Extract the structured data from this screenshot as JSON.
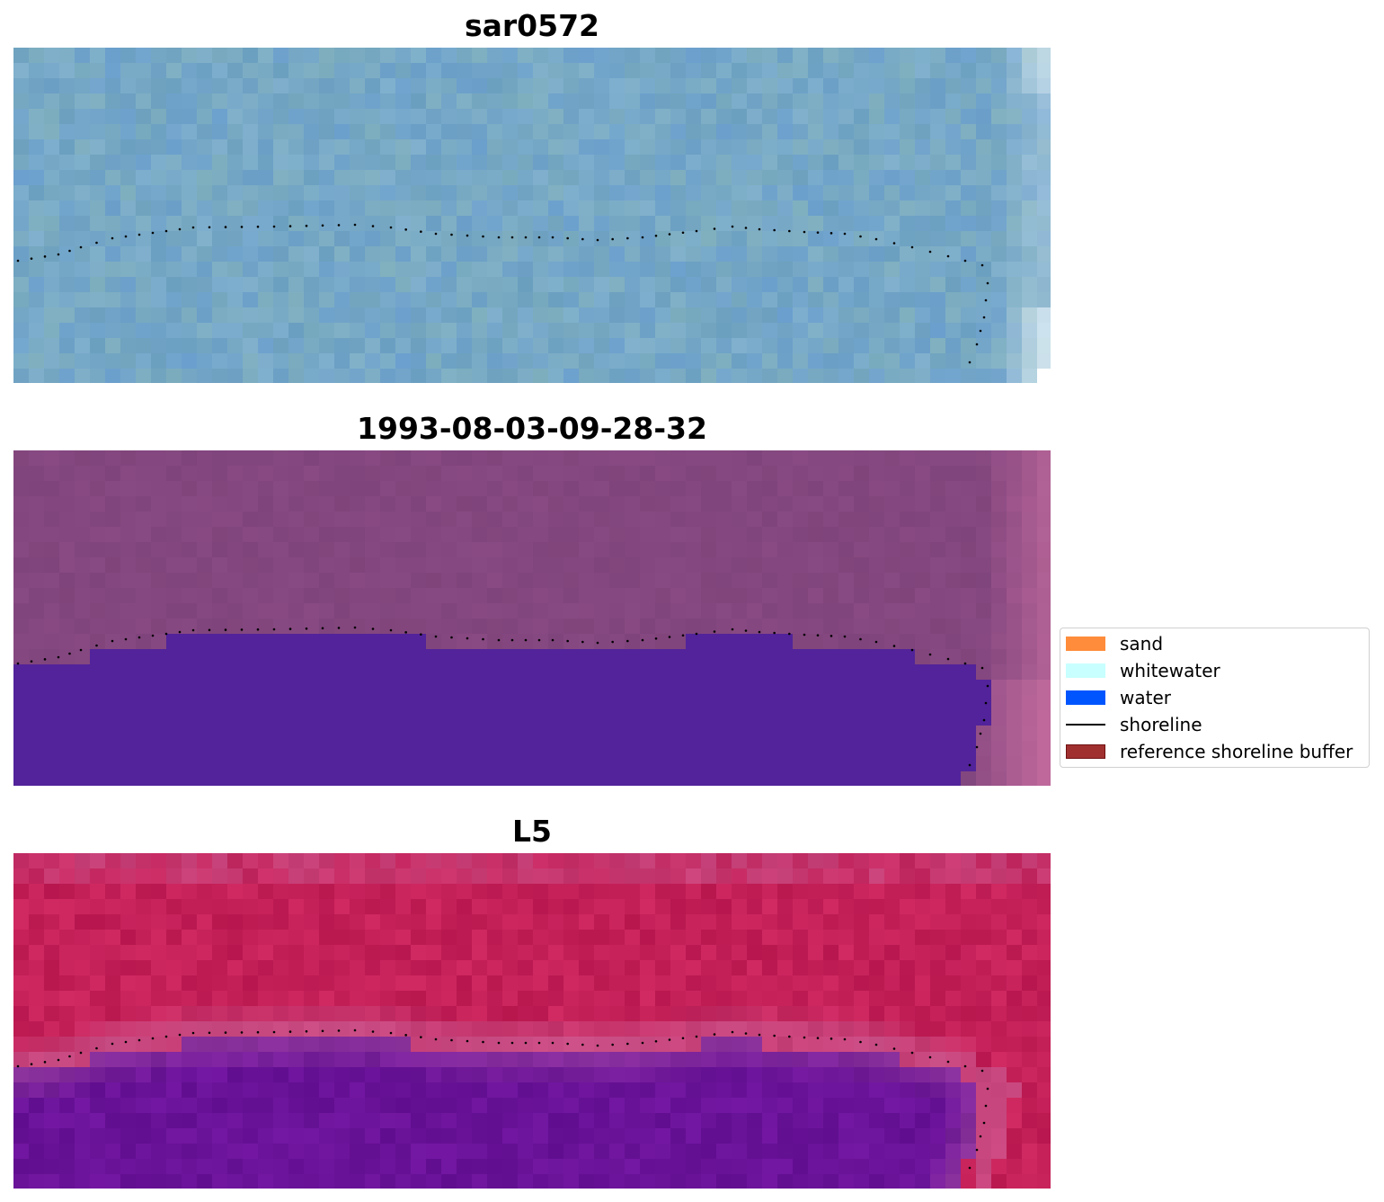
{
  "panels": [
    {
      "title": "sar0572",
      "style": "sar"
    },
    {
      "title": "1993-08-03-09-28-32",
      "style": "class"
    },
    {
      "title": "L5",
      "style": "mndwi"
    }
  ],
  "legend": {
    "items": [
      {
        "label": "sand",
        "kind": "patch",
        "color": "#ff8c3a",
        "edge": "#ff8c3a"
      },
      {
        "label": "whitewater",
        "kind": "patch",
        "color": "#c8ffff",
        "edge": "#c8ffff"
      },
      {
        "label": "water",
        "kind": "patch",
        "color": "#0055ff",
        "edge": "#0055ff"
      },
      {
        "label": "shoreline",
        "kind": "line",
        "color": "#000000",
        "edge": "#000000"
      },
      {
        "label": "reference shoreline buffer",
        "kind": "patch",
        "color": "#a03030",
        "edge": "#701010"
      }
    ]
  },
  "colors": {
    "sar_base": "#76a8c6",
    "class_land": "#84477f",
    "class_water": "#52239a",
    "mndwi_land": "#c42058",
    "mndwi_water": "#6a1399",
    "shoreline_dots": "#000000"
  }
}
